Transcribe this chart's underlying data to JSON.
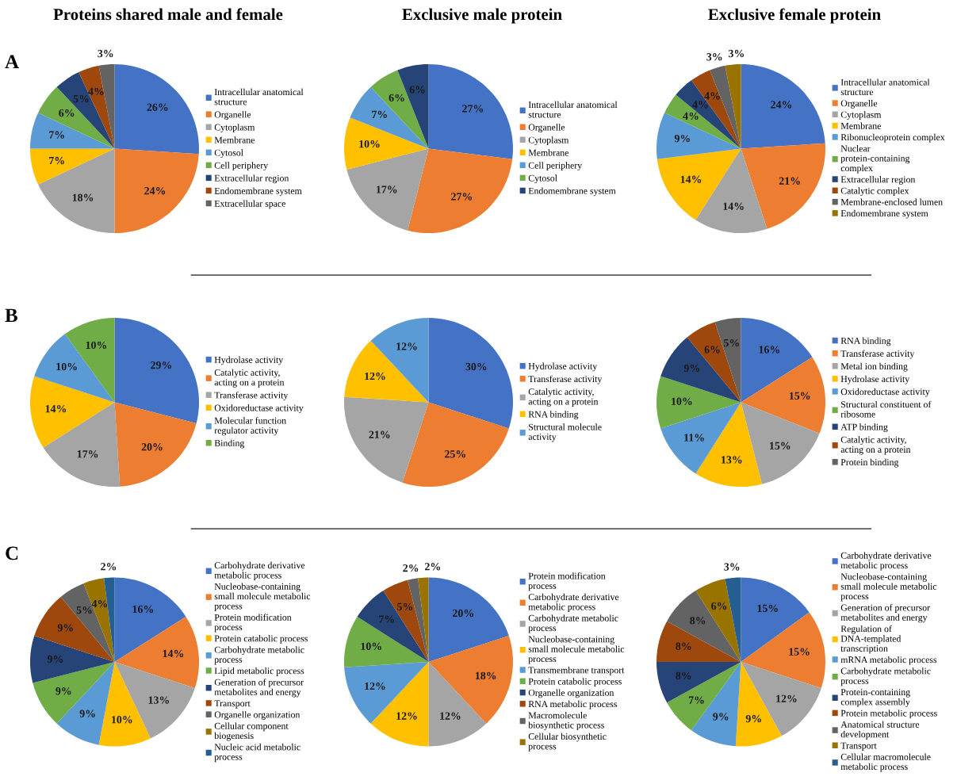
{
  "chart_data": [
    {
      "type": "pie",
      "title": "Proteins shared male and female",
      "annotations": [
        "A"
      ],
      "legend": "right",
      "categories": [
        "Intracellular anatomical structure",
        "Organelle",
        "Cytoplasm",
        "Membrane",
        "Cytosol",
        "Cell periphery",
        "Extracellular region",
        "Endomembrane system",
        "Extracellular space"
      ],
      "values": [
        26,
        24,
        18,
        7,
        7,
        6,
        5,
        4,
        3
      ],
      "value_labels": [
        "26%",
        "24%",
        "18%",
        "7%",
        "7%",
        "6%",
        "5%",
        "4%",
        "3%"
      ],
      "colors": [
        "#4472c4",
        "#ed7d31",
        "#a5a5a5",
        "#ffc000",
        "#5b9bd5",
        "#70ad47",
        "#264478",
        "#9e480e",
        "#636363"
      ]
    },
    {
      "type": "pie",
      "title": "Exclusive male protein",
      "legend": "right",
      "categories": [
        "Intracellular anatomical structure",
        "Organelle",
        "Cytoplasm",
        "Membrane",
        "Cell periphery",
        "Cytosol",
        "Endomembrane system"
      ],
      "values": [
        27,
        27,
        17,
        10,
        7,
        6,
        6
      ],
      "value_labels": [
        "27%",
        "27%",
        "17%",
        "10%",
        "7%",
        "6%",
        "6%"
      ],
      "colors": [
        "#4472c4",
        "#ed7d31",
        "#a5a5a5",
        "#ffc000",
        "#5b9bd5",
        "#70ad47",
        "#264478"
      ]
    },
    {
      "type": "pie",
      "title": "Exclusive female protein",
      "legend": "right",
      "categories": [
        "Intracellular anatomical structure",
        "Organelle",
        "Cytoplasm",
        "Membrane",
        "Ribonucleoprotein complex",
        "Nuclear protein-containing complex",
        "Extracellular region",
        "Catalytic complex",
        "Membrane-enclosed lumen",
        "Endomembrane system"
      ],
      "values": [
        24,
        21,
        14,
        14,
        9,
        4,
        4,
        4,
        3,
        3
      ],
      "value_labels": [
        "24%",
        "21%",
        "14%",
        "14%",
        "9%",
        "4%",
        "4%",
        "4%",
        "3%",
        "3%"
      ],
      "colors": [
        "#4472c4",
        "#ed7d31",
        "#a5a5a5",
        "#ffc000",
        "#5b9bd5",
        "#70ad47",
        "#264478",
        "#9e480e",
        "#636363",
        "#997300"
      ]
    },
    {
      "type": "pie",
      "annotations": [
        "B"
      ],
      "legend": "right",
      "categories": [
        "Hydrolase activity",
        "Catalytic activity, acting on a protein",
        "Transferase activity",
        "Oxidoreductase activity",
        "Molecular function regulator activity",
        "Binding"
      ],
      "values": [
        29,
        20,
        17,
        14,
        10,
        10
      ],
      "value_labels": [
        "29%",
        "20%",
        "17%",
        "14%",
        "10%",
        "10%"
      ],
      "colors": [
        "#4472c4",
        "#ed7d31",
        "#a5a5a5",
        "#ffc000",
        "#5b9bd5",
        "#70ad47"
      ]
    },
    {
      "type": "pie",
      "legend": "right",
      "categories": [
        "Hydrolase activity",
        "Transferase activity",
        "Catalytic activity, acting on a protein",
        "RNA binding",
        "Structural molecule activity"
      ],
      "values": [
        30,
        25,
        21,
        12,
        12
      ],
      "value_labels": [
        "30%",
        "25%",
        "21%",
        "12%",
        "12%"
      ],
      "colors": [
        "#4472c4",
        "#ed7d31",
        "#a5a5a5",
        "#ffc000",
        "#5b9bd5"
      ]
    },
    {
      "type": "pie",
      "legend": "right",
      "categories": [
        "RNA binding",
        "Transferase activity",
        "Metal ion binding",
        "Hydrolase activity",
        "Oxidoreductase activity",
        "Structural constituent of ribosome",
        "ATP binding",
        "Catalytic activity, acting on a protein",
        "Protein binding"
      ],
      "values": [
        16,
        15,
        15,
        13,
        11,
        10,
        9,
        6,
        5
      ],
      "value_labels": [
        "16%",
        "15%",
        "15%",
        "13%",
        "11%",
        "10%",
        "9%",
        "6%",
        "5%"
      ],
      "colors": [
        "#4472c4",
        "#ed7d31",
        "#a5a5a5",
        "#ffc000",
        "#5b9bd5",
        "#70ad47",
        "#264478",
        "#9e480e",
        "#636363"
      ]
    },
    {
      "type": "pie",
      "annotations": [
        "C"
      ],
      "legend": "right",
      "categories": [
        "Carbohydrate derivative metabolic process",
        "Nucleobase-containing small molecule metabolic process",
        "Protein modification process",
        "Protein catabolic process",
        "Carbohydrate metabolic process",
        "Lipid metabolic process",
        "Generation of precursor metabolites and energy",
        "Transport",
        "Organelle organization",
        "Cellular component biogenesis",
        "Nucleic acid metabolic process"
      ],
      "values": [
        16,
        14,
        13,
        10,
        9,
        9,
        9,
        9,
        5,
        4,
        2
      ],
      "value_labels": [
        "16%",
        "14%",
        "13%",
        "10%",
        "9%",
        "9%",
        "9%",
        "9%",
        "5%",
        "4%",
        "2%"
      ],
      "colors": [
        "#4472c4",
        "#ed7d31",
        "#a5a5a5",
        "#ffc000",
        "#5b9bd5",
        "#70ad47",
        "#264478",
        "#9e480e",
        "#636363",
        "#997300",
        "#255e91"
      ]
    },
    {
      "type": "pie",
      "legend": "right",
      "categories": [
        "Protein modification process",
        "Carbohydrate derivative metabolic process",
        "Carbohydrate metabolic process",
        "Nucleobase-containing small molecule metabolic process",
        "Transmembrane transport",
        "Protein catabolic process",
        "Organelle organization",
        "RNA metabolic process",
        "Macromolecule biosynthetic process",
        "Cellular biosynthetic process"
      ],
      "values": [
        20,
        18,
        12,
        12,
        12,
        10,
        7,
        5,
        2,
        2
      ],
      "value_labels": [
        "20%",
        "18%",
        "12%",
        "12%",
        "12%",
        "10%",
        "7%",
        "5%",
        "2%",
        "2%"
      ],
      "colors": [
        "#4472c4",
        "#ed7d31",
        "#a5a5a5",
        "#ffc000",
        "#5b9bd5",
        "#70ad47",
        "#264478",
        "#9e480e",
        "#636363",
        "#997300"
      ]
    },
    {
      "type": "pie",
      "legend": "right",
      "categories": [
        "Carbohydrate derivative metabolic process",
        "Nucleobase-containing small molecule metabolic process",
        "Generation of precursor metabolites and energy",
        "Regulation of DNA-templated transcription",
        "mRNA metabolic process",
        "Carbohydrate metabolic process",
        "Protein-containing complex assembly",
        "Protein metabolic process",
        "Anatomical structure development",
        "Transport",
        "Cellular macromolecule metabolic process"
      ],
      "values": [
        15,
        15,
        12,
        9,
        9,
        7,
        8,
        8,
        8,
        6,
        3
      ],
      "value_labels": [
        "15%",
        "15%",
        "12%",
        "9%",
        "9%",
        "7%",
        "8%",
        "8%",
        "8%",
        "6%",
        "3%"
      ],
      "colors": [
        "#4472c4",
        "#ed7d31",
        "#a5a5a5",
        "#ffc000",
        "#5b9bd5",
        "#70ad47",
        "#264478",
        "#9e480e",
        "#636363",
        "#997300",
        "#255e91"
      ]
    }
  ]
}
